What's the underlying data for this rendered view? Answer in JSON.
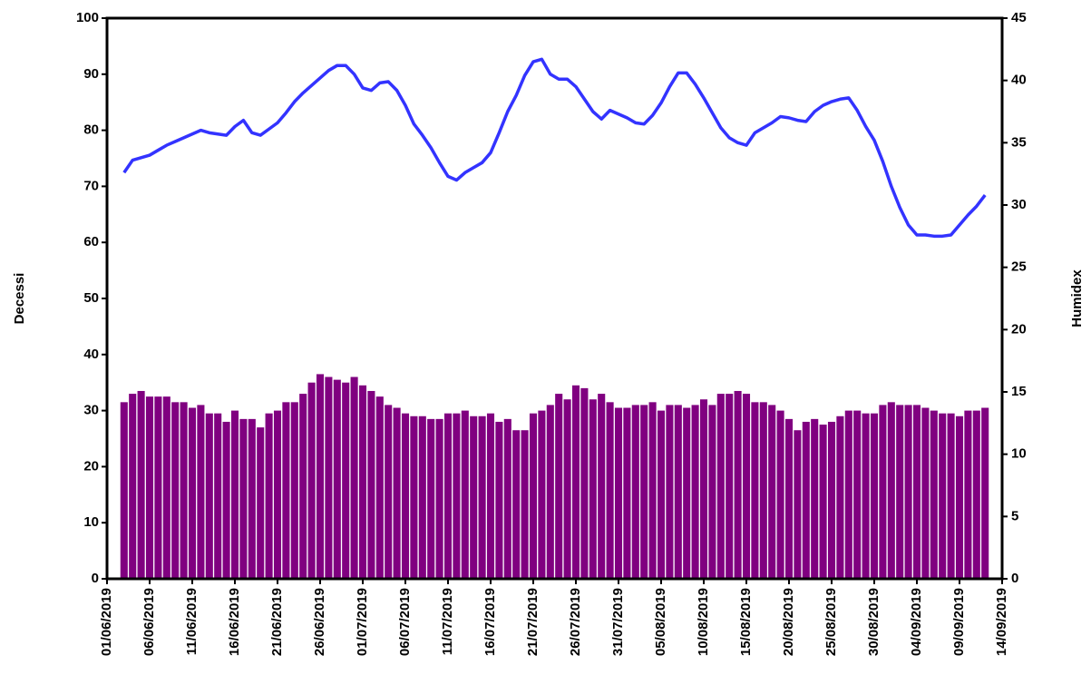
{
  "chart_data": {
    "type": "bar_line",
    "y_label": "Decessi",
    "y2_label": "Humidex",
    "categories": [
      "01/06/2019",
      null,
      null,
      null,
      null,
      "06/06/2019",
      null,
      null,
      null,
      null,
      "11/06/2019",
      null,
      null,
      null,
      null,
      "16/06/2019",
      null,
      null,
      null,
      null,
      "21/06/2019",
      null,
      null,
      null,
      null,
      "26/06/2019",
      null,
      null,
      null,
      null,
      "01/07/2019",
      null,
      null,
      null,
      null,
      "06/07/2019",
      null,
      null,
      null,
      null,
      "11/07/2019",
      null,
      null,
      null,
      null,
      "16/07/2019",
      null,
      null,
      null,
      null,
      "21/07/2019",
      null,
      null,
      null,
      null,
      "26/07/2019",
      null,
      null,
      null,
      null,
      "31/07/2019",
      null,
      null,
      null,
      null,
      "05/08/2019",
      null,
      null,
      null,
      null,
      "10/08/2019",
      null,
      null,
      null,
      null,
      "15/08/2019",
      null,
      null,
      null,
      null,
      "20/08/2019",
      null,
      null,
      null,
      null,
      "25/08/2019",
      null,
      null,
      null,
      null,
      "30/08/2019",
      null,
      null,
      null,
      null,
      "04/09/2019",
      null,
      null,
      null,
      null,
      "09/09/2019",
      null,
      null,
      null,
      null,
      "14/09/2019"
    ],
    "series": [
      {
        "type": "bar",
        "color": "#800080",
        "axis": "y",
        "values": [
          null,
          null,
          31.5,
          33,
          33.5,
          32.5,
          32.5,
          32.5,
          31.5,
          31.5,
          30.5,
          31,
          29.5,
          29.5,
          28,
          30,
          28.5,
          28.5,
          27,
          29.5,
          30,
          31.5,
          31.5,
          33,
          35,
          36.5,
          36,
          35.5,
          35,
          36,
          34.5,
          33.5,
          32.5,
          31,
          30.5,
          29.5,
          29,
          29,
          28.5,
          28.5,
          29.5,
          29.5,
          30,
          29,
          29,
          29.5,
          28,
          28.5,
          26.5,
          26.5,
          29.5,
          30,
          31,
          33,
          32,
          34.5,
          34,
          32,
          33,
          31.5,
          30.5,
          30.5,
          31,
          31,
          31.5,
          30,
          31,
          31,
          30.5,
          31,
          32,
          31,
          33,
          33,
          33.5,
          33,
          31.5,
          31.5,
          31,
          30,
          28.5,
          26.5,
          28,
          28.5,
          27.5,
          28,
          29,
          30,
          30,
          29.5,
          29.5,
          31,
          31.5,
          31,
          31,
          31,
          30.5,
          30,
          29.5,
          29.5,
          29,
          30,
          30,
          30.5,
          null,
          null
        ]
      },
      {
        "type": "line",
        "color": "#3333ff",
        "axis": "y2",
        "values": [
          null,
          null,
          32.6,
          33.6,
          33.8,
          34,
          34.4,
          34.8,
          35.1,
          35.4,
          35.7,
          36,
          35.8,
          35.7,
          35.6,
          36.3,
          36.8,
          35.8,
          35.6,
          36.1,
          36.6,
          37.4,
          38.3,
          39,
          39.6,
          40.2,
          40.8,
          41.2,
          41.2,
          40.5,
          39.4,
          39.2,
          39.8,
          39.9,
          39.2,
          38,
          36.5,
          35.6,
          34.6,
          33.4,
          32.3,
          32,
          32.6,
          33,
          33.4,
          34.2,
          35.8,
          37.5,
          38.8,
          40.4,
          41.5,
          41.7,
          40.5,
          40.1,
          40.1,
          39.5,
          38.5,
          37.5,
          36.9,
          37.6,
          37.3,
          37,
          36.6,
          36.5,
          37.2,
          38.2,
          39.5,
          40.6,
          40.6,
          39.7,
          38.6,
          37.4,
          36.2,
          35.4,
          35,
          34.8,
          35.8,
          36.2,
          36.6,
          37.1,
          37,
          36.8,
          36.7,
          37.5,
          38,
          38.3,
          38.5,
          38.6,
          37.6,
          36.3,
          35.2,
          33.5,
          31.5,
          29.8,
          28.4,
          27.6,
          27.6,
          27.5,
          27.5,
          27.6,
          28.4,
          29.2,
          29.9,
          30.8,
          null,
          null
        ]
      }
    ],
    "ylim": [
      0,
      100
    ],
    "yticks": [
      0,
      10,
      20,
      30,
      40,
      50,
      60,
      70,
      80,
      90,
      100
    ],
    "y2lim": [
      0,
      45
    ],
    "y2ticks": [
      0,
      5,
      10,
      15,
      20,
      25,
      30,
      35,
      40,
      45
    ]
  }
}
